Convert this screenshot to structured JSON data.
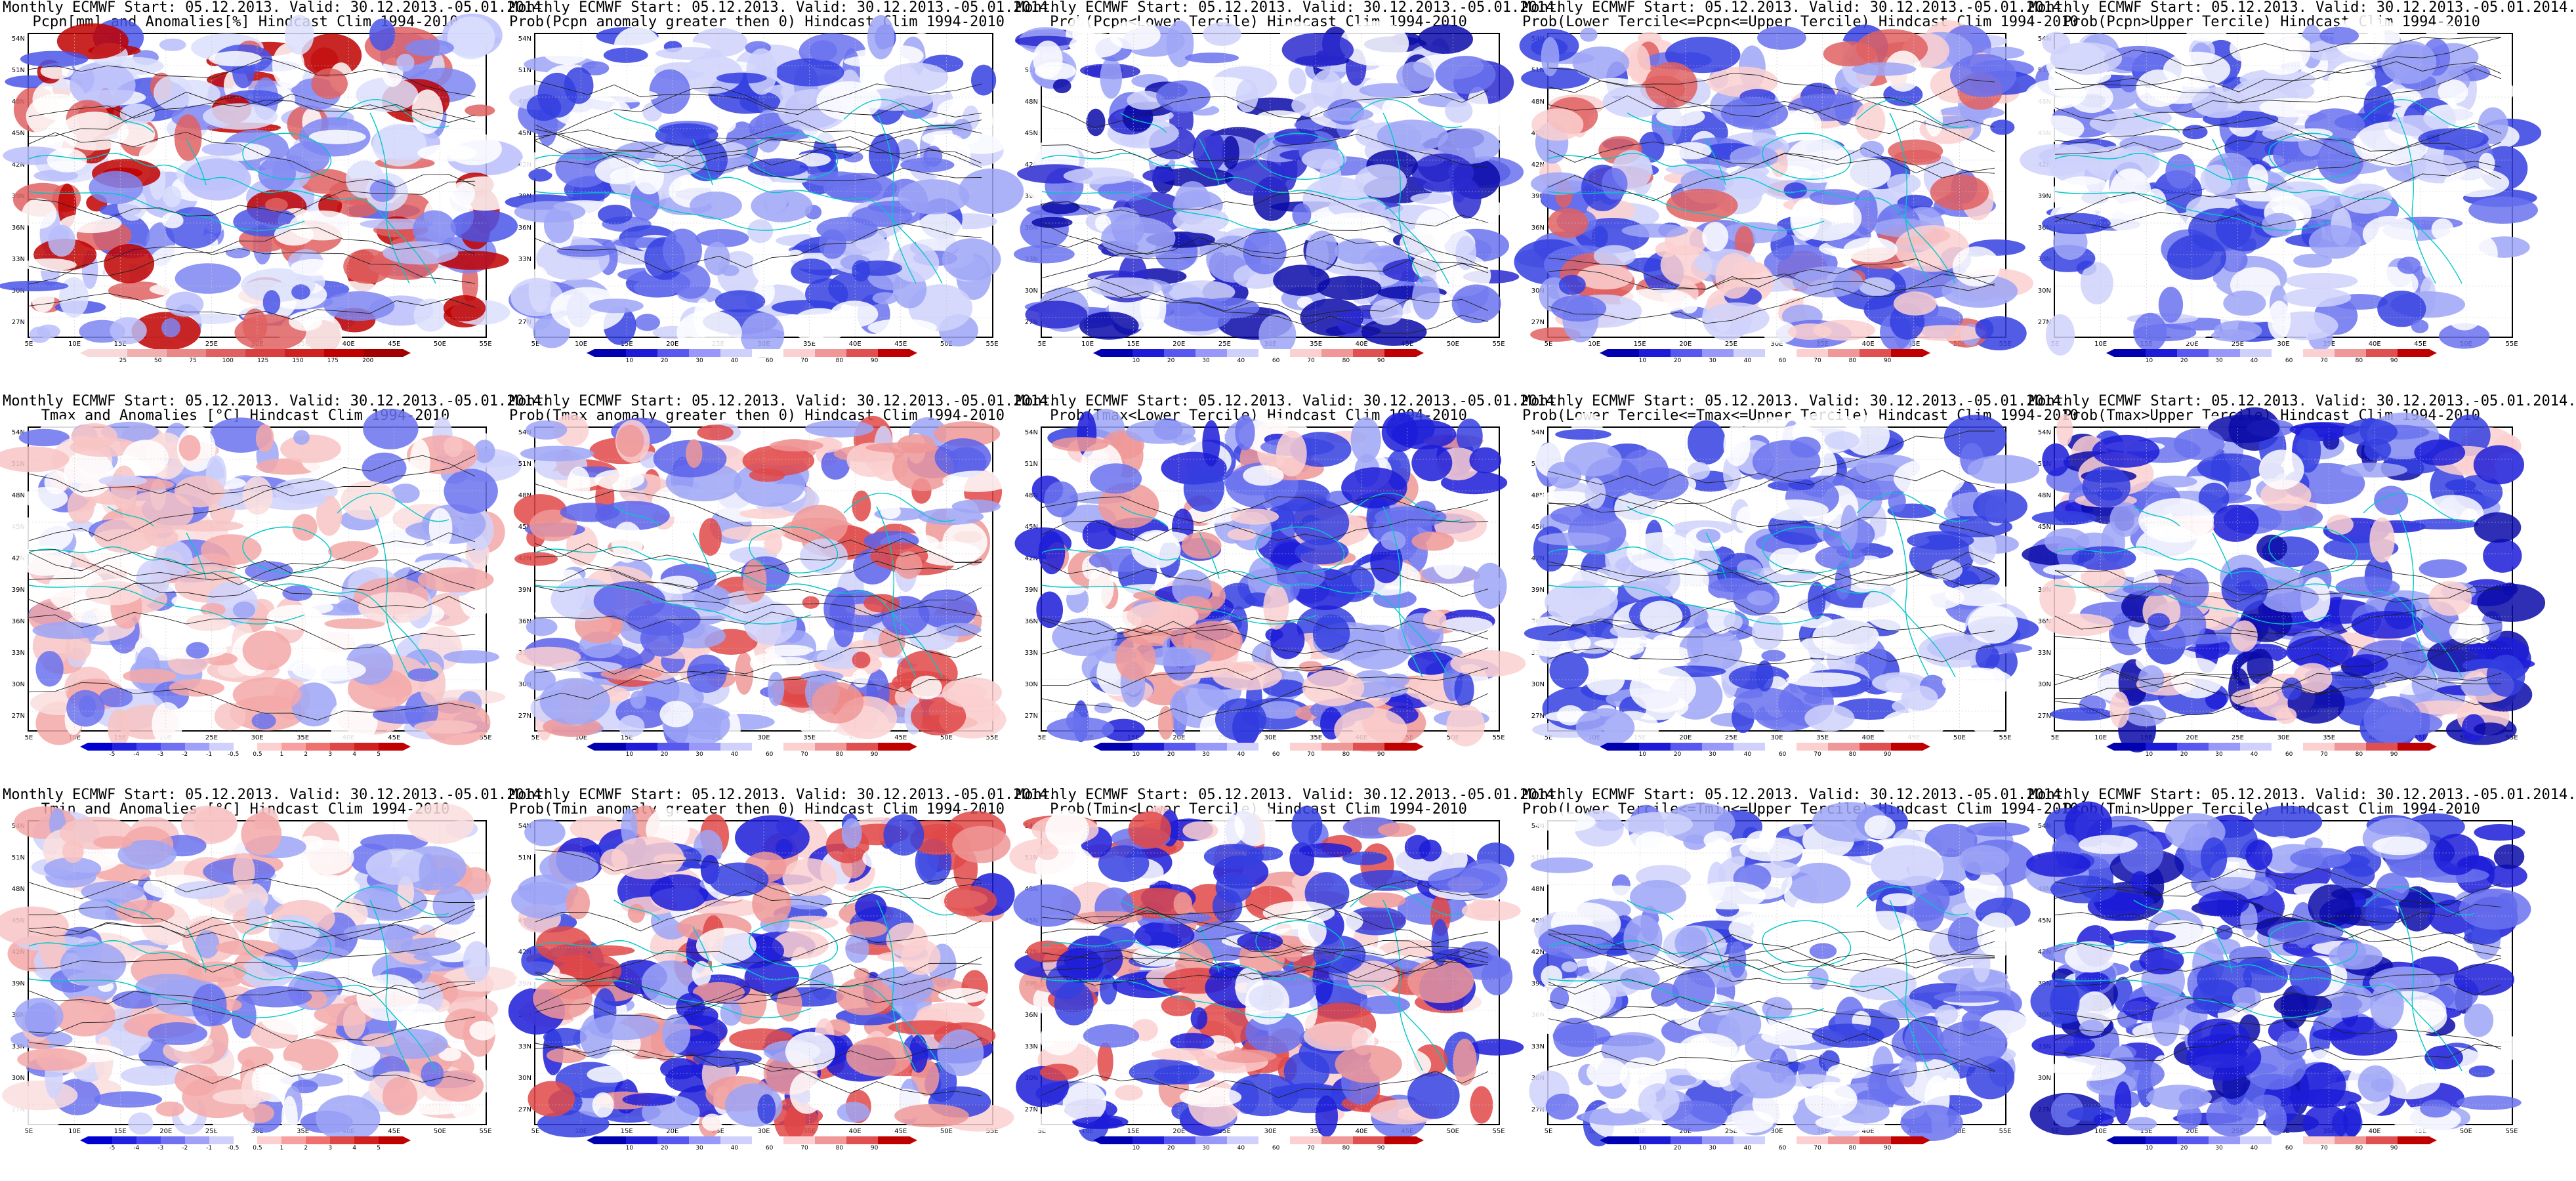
{
  "x_ticks": [
    "5E",
    "10E",
    "15E",
    "20E",
    "25E",
    "30E",
    "35E",
    "40E",
    "45E",
    "50E",
    "55E"
  ],
  "y_ticks": [
    "54N",
    "51N",
    "48N",
    "45N",
    "42N",
    "39N",
    "36N",
    "33N",
    "30N",
    "27N"
  ],
  "colorbars": {
    "pcpn_anom": {
      "labels": [
        "25",
        "50",
        "75",
        "100",
        "125",
        "150",
        "175",
        "200"
      ],
      "colors": [
        "#f8d8d8",
        "#f0b0b0",
        "#e88888",
        "#e06060",
        "#d84040",
        "#d02020",
        "#c00000",
        "#a00000"
      ]
    },
    "temp_anom": {
      "labels": [
        "-5",
        "-4",
        "-3",
        "-2",
        "-1",
        "-0.5",
        "0.5",
        "1",
        "2",
        "3",
        "4",
        "5"
      ],
      "colors": [
        "#0000d0",
        "#2020e0",
        "#4848f0",
        "#7070f0",
        "#a0a0f8",
        "#d0d0fc",
        "#ffffff",
        "#fcd0d0",
        "#f8a0a0",
        "#f07070",
        "#e04848",
        "#d02020",
        "#c00000"
      ]
    },
    "prob": {
      "labels": [
        "10",
        "20",
        "30",
        "40",
        "60",
        "70",
        "80",
        "90"
      ],
      "colors": [
        "#0000b0",
        "#1c1cd8",
        "#5858f0",
        "#9898f8",
        "#d0d0fc",
        "#ffffff",
        "#fcd0d0",
        "#f09898",
        "#e05050",
        "#c00000"
      ]
    }
  },
  "panels": [
    {
      "title_line1": "Monthly ECMWF Start: 05.12.2013. Valid: 30.12.2013.-05.01.2014.",
      "title_line2": "Pcpn[mm] and Anomalies[%] Hindcast Clim 1994-2010",
      "bar": "pcpn_anom",
      "base": "#ffffff",
      "palette": [
        "#4a55e8",
        "#7e86f2",
        "#b8bdfa",
        "#dcdffd",
        "#ffffff",
        "#ffffff",
        "#c00000",
        "#e06060"
      ]
    },
    {
      "title_line1": "Monthly ECMWF Start: 05.12.2013. Valid: 30.12.2013.-05.01.2014.",
      "title_line2": "Prob(Pcpn anomaly greater then 0) Hindcast Clim 1994-2010",
      "bar": "prob",
      "base": "#ffffff",
      "palette": [
        "#3440e0",
        "#6a72ee",
        "#9ea4f6",
        "#cfd2fb",
        "#ffffff",
        "#ffffff"
      ]
    },
    {
      "title_line1": "Monthly ECMWF Start: 05.12.2013. Valid: 30.12.2013.-05.01.2014.",
      "title_line2": "Prob(Pcpn<Lower Tercile) Hindcast Clim 1994-2010",
      "bar": "prob",
      "base": "#ffffff",
      "palette": [
        "#0a0aa8",
        "#2a2ad0",
        "#6a72ee",
        "#9ea4f6",
        "#cfd2fb",
        "#ffffff"
      ]
    },
    {
      "title_line1": "Monthly ECMWF Start: 05.12.2013. Valid: 30.12.2013.-05.01.2014.",
      "title_line2": "Prob(Lower Tercile<=Pcpn<=Upper Tercile) Hindcast Clim 1994-2010",
      "bar": "prob",
      "base": "#ffffff",
      "palette": [
        "#3440e0",
        "#6a72ee",
        "#9ea4f6",
        "#cfd2fb",
        "#ffffff",
        "#fcd0d0",
        "#e06060"
      ]
    },
    {
      "title_line1": "Monthly ECMWF Start: 05.12.2013. Valid: 30.12.2013.-05.01.2014.",
      "title_line2": "Prob(Pcpn>Upper Tercile) Hindcast Clim 1994-2010",
      "bar": "prob",
      "base": "#ffffff",
      "palette": [
        "#3440e0",
        "#6a72ee",
        "#9ea4f6",
        "#cfd2fb",
        "#ffffff",
        "#ffffff"
      ]
    },
    {
      "title_line1": "Monthly ECMWF Start: 05.12.2013. Valid: 30.12.2013.-05.01.2014.",
      "title_line2": "Tmax and Anomalies [°C] Hindcast Clim 1994-2010",
      "bar": "temp_anom",
      "base": "#ffffff",
      "palette": [
        "#f4a8a8",
        "#f8c4c4",
        "#fcdede",
        "#ffffff",
        "#cfd2fb",
        "#9ea4f6",
        "#6a72ee"
      ]
    },
    {
      "title_line1": "Monthly ECMWF Start: 05.12.2013. Valid: 30.12.2013.-05.01.2014.",
      "title_line2": "Prob(Tmax anomaly greater then 0) Hindcast Clim 1994-2010",
      "bar": "prob",
      "base": "#ffffff",
      "palette": [
        "#e04848",
        "#f09898",
        "#fcd0d0",
        "#ffffff",
        "#cfd2fb",
        "#9ea4f6",
        "#5a62ea"
      ]
    },
    {
      "title_line1": "Monthly ECMWF Start: 05.12.2013. Valid: 30.12.2013.-05.01.2014.",
      "title_line2": "Prob(Tmax<Lower Tercile) Hindcast Clim 1994-2010",
      "bar": "prob",
      "base": "#ffffff",
      "palette": [
        "#1c1cd8",
        "#3440e0",
        "#6a72ee",
        "#9ea4f6",
        "#ffffff",
        "#fcd0d0",
        "#f09898"
      ]
    },
    {
      "title_line1": "Monthly ECMWF Start: 05.12.2013. Valid: 30.12.2013.-05.01.2014.",
      "title_line2": "Prob(Lower Tercile<=Tmax<=Upper Tercile) Hindcast Clim 1994-2010",
      "bar": "prob",
      "base": "#ffffff",
      "palette": [
        "#3440e0",
        "#6a72ee",
        "#9ea4f6",
        "#cfd2fb",
        "#ffffff",
        "#ffffff"
      ]
    },
    {
      "title_line1": "Monthly ECMWF Start: 05.12.2013. Valid: 30.12.2013.-05.01.2014.",
      "title_line2": "Prob(Tmax>Upper Tercile) Hindcast Clim 1994-2010",
      "bar": "prob",
      "base": "#ffffff",
      "palette": [
        "#0a0aa8",
        "#1c1cd8",
        "#3440e0",
        "#6a72ee",
        "#9ea4f6",
        "#ffffff",
        "#fcd0d0"
      ]
    },
    {
      "title_line1": "Monthly ECMWF Start: 05.12.2013. Valid: 30.12.2013.-05.01.2014.",
      "title_line2": "Tmin and Anomalies [°C] Hindcast Clim 1994-2010",
      "bar": "temp_anom",
      "base": "#ffffff",
      "palette": [
        "#f4a8a8",
        "#f8c4c4",
        "#fcdede",
        "#ffffff",
        "#cfd2fb",
        "#9ea4f6",
        "#6a72ee"
      ]
    },
    {
      "title_line1": "Monthly ECMWF Start: 05.12.2013. Valid: 30.12.2013.-05.01.2014.",
      "title_line2": "Prob(Tmin anomaly greater then 0) Hindcast Clim 1994-2010",
      "bar": "prob",
      "base": "#ffffff",
      "palette": [
        "#e04848",
        "#f09898",
        "#fcd0d0",
        "#ffffff",
        "#9ea4f6",
        "#3440e0",
        "#1c1cd8"
      ]
    },
    {
      "title_line1": "Monthly ECMWF Start: 05.12.2013. Valid: 30.12.2013.-05.01.2014.",
      "title_line2": "Prob(Tmin<Lower Tercile) Hindcast Clim 1994-2010",
      "bar": "prob",
      "base": "#ffffff",
      "palette": [
        "#1c1cd8",
        "#3440e0",
        "#6a72ee",
        "#ffffff",
        "#fcd0d0",
        "#f09898",
        "#e04848"
      ]
    },
    {
      "title_line1": "Monthly ECMWF Start: 05.12.2013. Valid: 30.12.2013.-05.01.2014.",
      "title_line2": "Prob(Lower Tercile<=Tmin<=Upper Tercile) Hindcast Clim 1994-2010",
      "bar": "prob",
      "base": "#ffffff",
      "palette": [
        "#3440e0",
        "#6a72ee",
        "#9ea4f6",
        "#cfd2fb",
        "#ffffff",
        "#ffffff"
      ]
    },
    {
      "title_line1": "Monthly ECMWF Start: 05.12.2013. Valid: 30.12.2013.-05.01.2014.",
      "title_line2": "Prob(Tmin>Upper Tercile) Hindcast Clim 1994-2010",
      "bar": "prob",
      "base": "#ffffff",
      "palette": [
        "#0a0aa8",
        "#1c1cd8",
        "#3440e0",
        "#6a72ee",
        "#9ea4f6",
        "#ffffff"
      ]
    }
  ]
}
